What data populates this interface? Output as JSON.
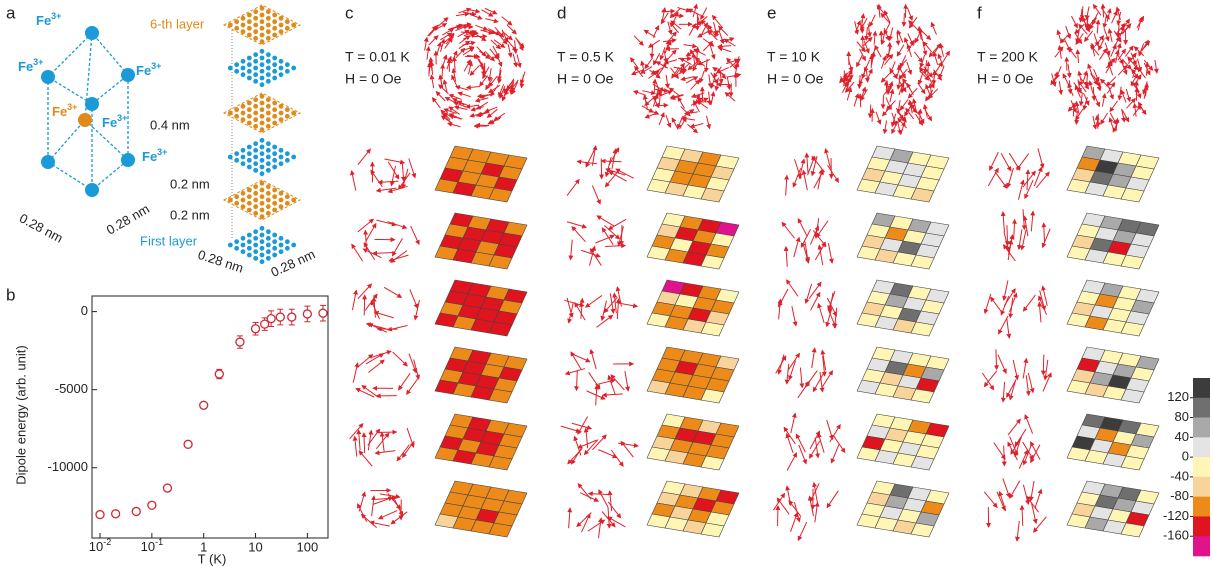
{
  "chart_data": {
    "type": "scatter",
    "label": "b",
    "x": [
      0.01,
      0.02,
      0.05,
      0.1,
      0.2,
      0.5,
      1,
      2,
      5,
      10,
      15,
      20,
      30,
      50,
      100,
      200
    ],
    "values": [
      -13000,
      -12950,
      -12800,
      -12400,
      -11300,
      -8500,
      -6000,
      -4000,
      -1950,
      -1100,
      -800,
      -450,
      -350,
      -350,
      -150,
      -100
    ],
    "errors": [
      0,
      0,
      0,
      0,
      0,
      0,
      0,
      300,
      400,
      400,
      400,
      500,
      500,
      500,
      500,
      500
    ],
    "color": "#cc2a36",
    "log_x": true,
    "xlim": [
      0.007,
      250
    ],
    "ylim": [
      -14500,
      1000
    ],
    "xticks": [
      {
        "value": 0.01,
        "label": "10",
        "sup": "-2"
      },
      {
        "value": 0.1,
        "label": "10",
        "sup": "-1"
      },
      1,
      10,
      100
    ],
    "yticks": [
      0,
      -5000,
      -10000
    ],
    "xlabel": "T (K)",
    "ylabel": "Dipole energy (arb. unit)"
  },
  "panel_a": {
    "label": "a",
    "ions": [
      {
        "text": "Fe",
        "charge": "3+"
      },
      {
        "text": "Fe",
        "charge": "3+"
      },
      {
        "text": "Fe",
        "charge": "3+"
      },
      {
        "text": "Fe",
        "charge": "3+"
      },
      {
        "text": "Fe",
        "charge": "3+"
      },
      {
        "text": "Fe",
        "charge": "3+"
      }
    ],
    "dims": [
      "0.4 nm",
      "0.28 nm",
      "0.28 nm"
    ],
    "stack": {
      "top": "6-th layer",
      "bottom": "First layer",
      "spacing": [
        "0.2 nm",
        "0.2 nm"
      ],
      "base": [
        "0.28 nm",
        "0.28 nm"
      ]
    }
  },
  "spin_panels": [
    {
      "label": "c",
      "T": "T = 0.01 K",
      "H": "H = 0 Oe",
      "layers": [
        [
          -100,
          -100,
          -100,
          -100,
          -100,
          -100,
          -140,
          -100,
          -140,
          -100,
          -100,
          -140,
          -100,
          -140,
          -100,
          -100
        ],
        [
          -140,
          -100,
          -140,
          -100,
          -100,
          -140,
          -140,
          -140,
          -140,
          -140,
          -100,
          -140,
          -100,
          -140,
          -100,
          -100
        ],
        [
          -140,
          -140,
          -100,
          -140,
          -140,
          -140,
          -140,
          -100,
          -100,
          -140,
          -140,
          -140,
          -140,
          -100,
          -140,
          -140
        ],
        [
          -100,
          -140,
          -100,
          -100,
          -140,
          -140,
          -100,
          -140,
          -100,
          -140,
          -140,
          -100,
          -140,
          -100,
          -140,
          -100
        ],
        [
          -100,
          -140,
          -100,
          -100,
          -100,
          -140,
          -140,
          -100,
          -140,
          -100,
          -140,
          -100,
          -100,
          -140,
          -100,
          -100
        ],
        [
          -100,
          -100,
          -100,
          -100,
          -100,
          -100,
          -100,
          -100,
          -100,
          -100,
          -140,
          -100,
          -60,
          -100,
          -100,
          -100
        ]
      ]
    },
    {
      "label": "d",
      "T": "T = 0.5 K",
      "H": "H = 0 Oe",
      "layers": [
        [
          -20,
          -60,
          -100,
          -20,
          -60,
          -100,
          -100,
          -60,
          -20,
          -100,
          -100,
          -20,
          -20,
          -60,
          -20,
          -60
        ],
        [
          -20,
          -100,
          -140,
          -180,
          -60,
          -140,
          -100,
          -20,
          -100,
          -20,
          -140,
          -100,
          -20,
          -100,
          -140,
          -20
        ],
        [
          -180,
          -140,
          -100,
          -20,
          -60,
          -20,
          -100,
          -100,
          -100,
          -100,
          -140,
          -60,
          -20,
          -100,
          -60,
          -20
        ],
        [
          -100,
          -100,
          -100,
          -60,
          -100,
          -140,
          -100,
          -100,
          -100,
          -100,
          -100,
          -100,
          -60,
          -100,
          -100,
          -20
        ],
        [
          -20,
          -100,
          -60,
          -100,
          -100,
          -140,
          -140,
          -100,
          -60,
          -100,
          -100,
          -100,
          -20,
          -60,
          -100,
          -20
        ],
        [
          -20,
          -60,
          -100,
          -140,
          -60,
          -100,
          -140,
          -100,
          -100,
          -60,
          -100,
          -20,
          -20,
          -20,
          -60,
          -20
        ]
      ]
    },
    {
      "label": "e",
      "T": "T = 10 K",
      "H": "H = 0 Oe",
      "layers": [
        [
          20,
          60,
          -20,
          -20,
          -20,
          20,
          20,
          -20,
          -60,
          -20,
          20,
          -20,
          -20,
          20,
          -20,
          -60
        ],
        [
          60,
          -20,
          60,
          20,
          -20,
          -100,
          -20,
          20,
          -60,
          20,
          100,
          20,
          -20,
          -60,
          -20,
          -20
        ],
        [
          20,
          100,
          -20,
          20,
          -20,
          60,
          20,
          -20,
          -60,
          -20,
          100,
          20,
          -20,
          20,
          -60,
          -20
        ],
        [
          -20,
          20,
          -20,
          -20,
          20,
          100,
          -100,
          60,
          -20,
          -60,
          20,
          -140,
          20,
          -20,
          -60,
          -20
        ],
        [
          -20,
          -20,
          -100,
          -140,
          20,
          -60,
          -20,
          -20,
          -140,
          -20,
          20,
          -20,
          -20,
          20,
          -20,
          20
        ],
        [
          -20,
          100,
          20,
          -20,
          -60,
          60,
          20,
          -100,
          -20,
          20,
          -20,
          60,
          -20,
          -20,
          -60,
          -20
        ]
      ]
    },
    {
      "label": "f",
      "T": "T = 200 K",
      "H": "H = 0 Oe",
      "layers": [
        [
          60,
          20,
          -20,
          -20,
          -100,
          140,
          60,
          -20,
          -60,
          100,
          60,
          20,
          -20,
          20,
          -20,
          -20
        ],
        [
          20,
          60,
          100,
          100,
          -20,
          20,
          60,
          20,
          -60,
          100,
          -140,
          20,
          -20,
          20,
          -20,
          -20
        ],
        [
          20,
          60,
          -20,
          20,
          -20,
          -100,
          -20,
          60,
          -60,
          20,
          -20,
          20,
          -20,
          -100,
          -20,
          -20
        ],
        [
          20,
          -20,
          -20,
          60,
          -140,
          20,
          60,
          -20,
          -60,
          60,
          140,
          20,
          -20,
          -60,
          -20,
          20
        ],
        [
          100,
          140,
          100,
          -20,
          20,
          -100,
          -20,
          60,
          140,
          20,
          -100,
          -20,
          -20,
          -20,
          20,
          -20
        ],
        [
          20,
          60,
          100,
          -20,
          -20,
          100,
          60,
          20,
          -60,
          20,
          -20,
          -140,
          -20,
          60,
          20,
          -20
        ]
      ]
    }
  ],
  "colorbar": {
    "lim": [
      -200,
      160
    ],
    "ticks": [
      120,
      80,
      40,
      0,
      -40,
      -80,
      -120,
      -160
    ],
    "colors": [
      "#3c3c3c",
      "#6f6f6f",
      "#a9a9a9",
      "#e4e4e4",
      "#fff5b4",
      "#f8d39a",
      "#ec8a1a",
      "#e0141e",
      "#e0128c"
    ]
  }
}
